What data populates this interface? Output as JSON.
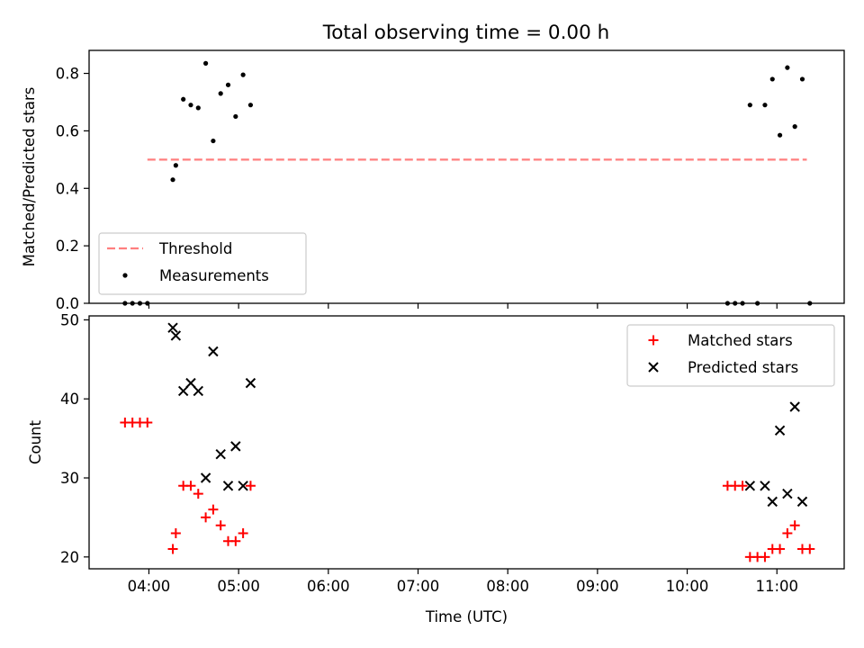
{
  "chart_data": [
    {
      "type": "scatter",
      "title": "Total observing time = 0.00 h",
      "xlabel": "",
      "ylabel": "Matched/Predicted stars",
      "x_is_time": true,
      "xlim": [
        "03:20",
        "11:45"
      ],
      "ylim": [
        0,
        0.88
      ],
      "yticks": [
        "0.0",
        "0.2",
        "0.4",
        "0.6",
        "0.8"
      ],
      "xticks": [
        "04:00",
        "05:00",
        "06:00",
        "07:00",
        "08:00",
        "09:00",
        "10:00",
        "11:00"
      ],
      "xticklabels_shown": false,
      "grid": false,
      "legend_position": "lower-left",
      "series": [
        {
          "name": "Threshold",
          "kind": "line",
          "style": "dashed",
          "color": "#ff7f7f",
          "points": [
            [
              "03:59",
              0.5
            ],
            [
              "11:20",
              0.5
            ]
          ]
        },
        {
          "name": "Measurements",
          "kind": "scatter",
          "marker": "dot",
          "color": "#000000",
          "points": [
            [
              "03:44",
              0.0
            ],
            [
              "03:49",
              0.0
            ],
            [
              "03:54",
              0.0
            ],
            [
              "03:59",
              0.0
            ],
            [
              "04:16",
              0.43
            ],
            [
              "04:18",
              0.48
            ],
            [
              "04:23",
              0.71
            ],
            [
              "04:28",
              0.69
            ],
            [
              "04:33",
              0.68
            ],
            [
              "04:38",
              0.835
            ],
            [
              "04:43",
              0.565
            ],
            [
              "04:48",
              0.73
            ],
            [
              "04:53",
              0.76
            ],
            [
              "04:58",
              0.65
            ],
            [
              "05:03",
              0.795
            ],
            [
              "05:08",
              0.69
            ],
            [
              "10:27",
              0.0
            ],
            [
              "10:32",
              0.0
            ],
            [
              "10:37",
              0.0
            ],
            [
              "10:42",
              0.69
            ],
            [
              "10:47",
              0.0
            ],
            [
              "10:52",
              0.69
            ],
            [
              "10:57",
              0.78
            ],
            [
              "11:02",
              0.585
            ],
            [
              "11:07",
              0.82
            ],
            [
              "11:12",
              0.615
            ],
            [
              "11:17",
              0.78
            ],
            [
              "11:22",
              0.0
            ]
          ]
        }
      ]
    },
    {
      "type": "scatter",
      "title": "",
      "xlabel": "Time (UTC)",
      "ylabel": "Count",
      "x_is_time": true,
      "xlim": [
        "03:20",
        "11:45"
      ],
      "ylim": [
        18.5,
        50.5
      ],
      "yticks": [
        "20",
        "30",
        "40",
        "50"
      ],
      "xticks": [
        "04:00",
        "05:00",
        "06:00",
        "07:00",
        "08:00",
        "09:00",
        "10:00",
        "11:00"
      ],
      "grid": false,
      "legend_position": "upper-right",
      "series": [
        {
          "name": "Matched stars",
          "kind": "scatter",
          "marker": "plus",
          "color": "#ff0000",
          "points": [
            [
              "03:44",
              37
            ],
            [
              "03:49",
              37
            ],
            [
              "03:54",
              37
            ],
            [
              "03:59",
              37
            ],
            [
              "04:16",
              21
            ],
            [
              "04:18",
              23
            ],
            [
              "04:23",
              29
            ],
            [
              "04:28",
              29
            ],
            [
              "04:33",
              28
            ],
            [
              "04:38",
              25
            ],
            [
              "04:43",
              26
            ],
            [
              "04:48",
              24
            ],
            [
              "04:53",
              22
            ],
            [
              "04:58",
              22
            ],
            [
              "05:03",
              23
            ],
            [
              "05:08",
              29
            ],
            [
              "10:27",
              29
            ],
            [
              "10:32",
              29
            ],
            [
              "10:37",
              29
            ],
            [
              "10:42",
              20
            ],
            [
              "10:47",
              20
            ],
            [
              "10:52",
              20
            ],
            [
              "10:57",
              21
            ],
            [
              "11:02",
              21
            ],
            [
              "11:07",
              23
            ],
            [
              "11:12",
              24
            ],
            [
              "11:17",
              21
            ],
            [
              "11:22",
              21
            ]
          ]
        },
        {
          "name": "Predicted stars",
          "kind": "scatter",
          "marker": "x",
          "color": "#000000",
          "points": [
            [
              "04:16",
              49
            ],
            [
              "04:18",
              48
            ],
            [
              "04:23",
              41
            ],
            [
              "04:28",
              42
            ],
            [
              "04:33",
              41
            ],
            [
              "04:38",
              30
            ],
            [
              "04:43",
              46
            ],
            [
              "04:48",
              33
            ],
            [
              "04:53",
              29
            ],
            [
              "04:58",
              34
            ],
            [
              "05:03",
              29
            ],
            [
              "05:08",
              42
            ],
            [
              "10:42",
              29
            ],
            [
              "10:52",
              29
            ],
            [
              "10:57",
              27
            ],
            [
              "11:02",
              36
            ],
            [
              "11:07",
              28
            ],
            [
              "11:12",
              39
            ],
            [
              "11:17",
              27
            ]
          ]
        }
      ]
    }
  ]
}
